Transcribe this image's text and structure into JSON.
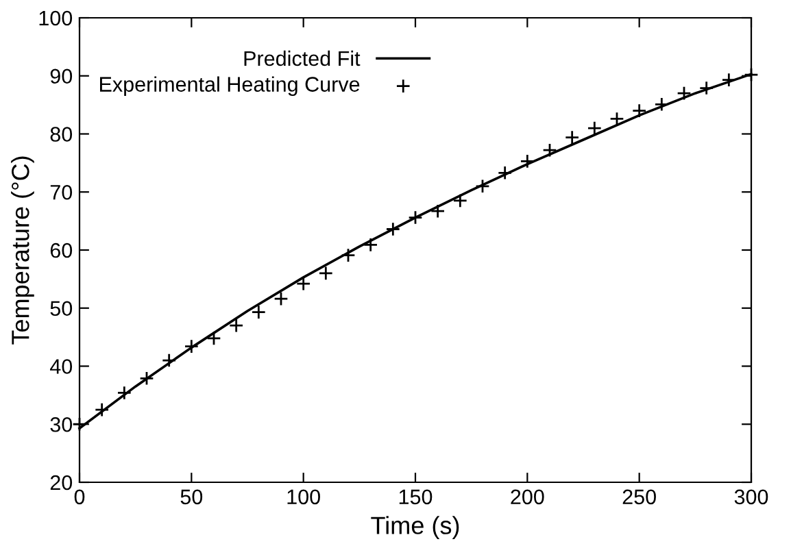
{
  "chart_data": {
    "type": "line",
    "xlabel": "Time (s)",
    "ylabel": "Temperature (°C)",
    "xlim": [
      0,
      300
    ],
    "ylim": [
      20,
      100
    ],
    "xticks": [
      0,
      50,
      100,
      150,
      200,
      250,
      300
    ],
    "yticks": [
      20,
      30,
      40,
      50,
      60,
      70,
      80,
      90,
      100
    ],
    "grid": false,
    "legend": "top left",
    "series": [
      {
        "name": "Predicted Fit",
        "color": "#000000",
        "marker": "none",
        "line_style": "solid",
        "x": [
          0,
          25,
          50,
          75,
          100,
          125,
          150,
          175,
          200,
          225,
          250,
          275,
          300
        ],
        "values": [
          29.3,
          36.5,
          43.2,
          49.5,
          55.3,
          60.6,
          65.6,
          70.3,
          74.8,
          79.0,
          83.2,
          87.0,
          90.3
        ]
      },
      {
        "name": "Experimental Heating Curve",
        "type": "scatter",
        "color": "#000000",
        "marker": "cross",
        "x": [
          0,
          10,
          20,
          30,
          40,
          50,
          60,
          70,
          80,
          90,
          100,
          110,
          120,
          130,
          140,
          150,
          160,
          170,
          180,
          190,
          200,
          210,
          220,
          230,
          240,
          250,
          260,
          270,
          280,
          290,
          300
        ],
        "values": [
          30.0,
          32.5,
          35.4,
          37.9,
          41.0,
          43.4,
          44.8,
          47.0,
          49.3,
          51.6,
          54.2,
          56.0,
          59.1,
          60.9,
          63.6,
          65.6,
          66.7,
          68.5,
          71.0,
          73.3,
          75.3,
          77.2,
          79.4,
          81.0,
          82.6,
          84.0,
          85.1,
          87.0,
          87.9,
          89.3,
          90.2
        ]
      }
    ]
  }
}
